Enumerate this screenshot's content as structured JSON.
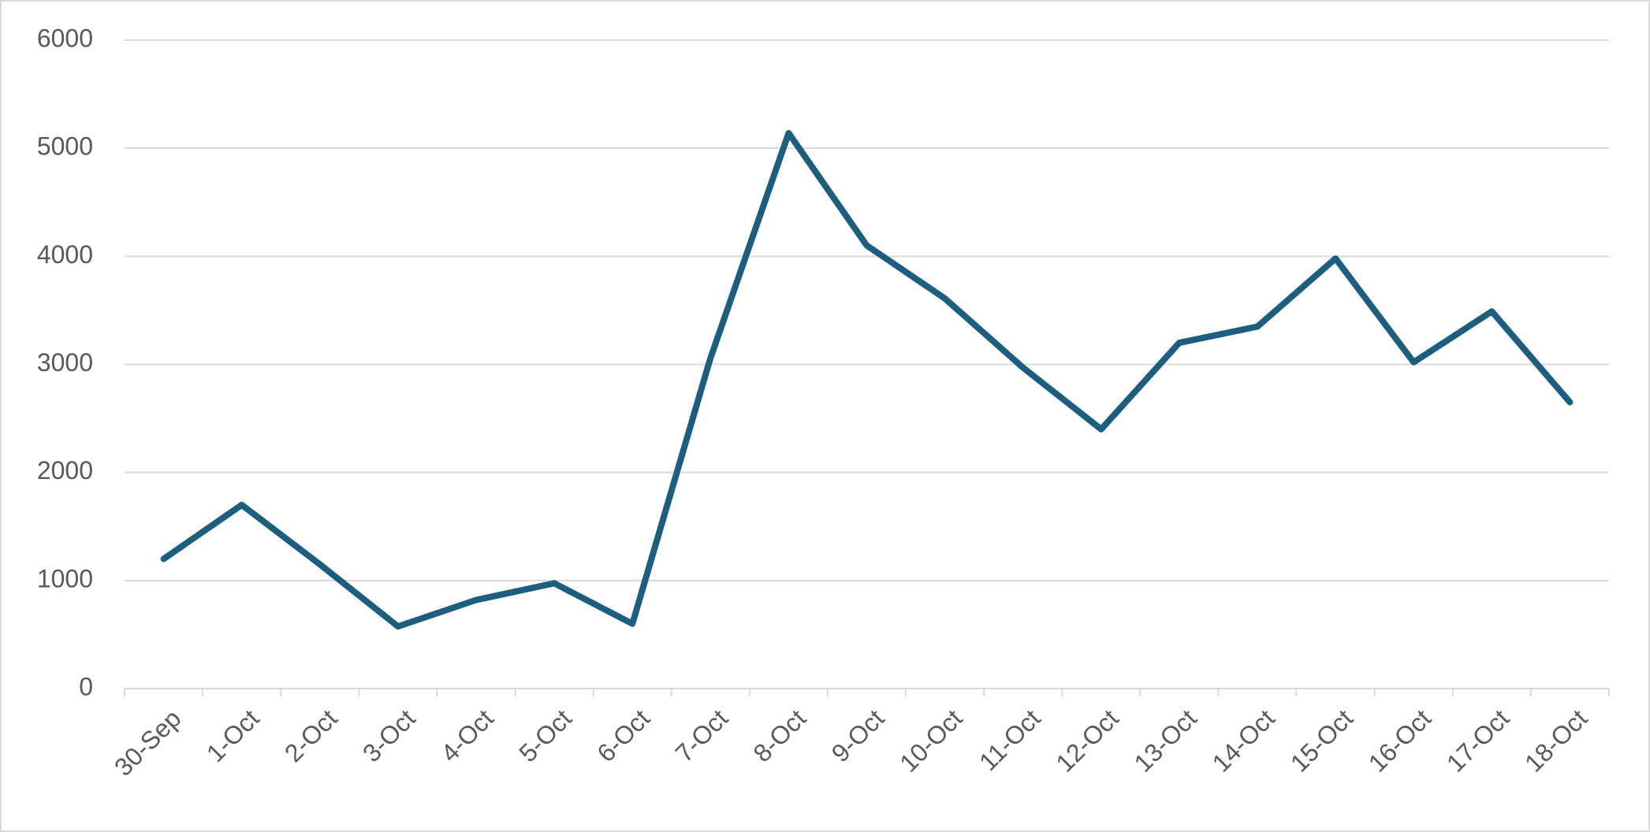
{
  "chart_data": {
    "type": "line",
    "categories": [
      "30-Sep",
      "1-Oct",
      "2-Oct",
      "3-Oct",
      "4-Oct",
      "5-Oct",
      "6-Oct",
      "7-Oct",
      "8-Oct",
      "9-Oct",
      "10-Oct",
      "11-Oct",
      "12-Oct",
      "13-Oct",
      "14-Oct",
      "15-Oct",
      "16-Oct",
      "17-Oct",
      "18-Oct"
    ],
    "values": [
      1200,
      1700,
      1150,
      575,
      820,
      975,
      600,
      3060,
      5140,
      4100,
      3610,
      2970,
      2400,
      3200,
      3350,
      3980,
      3020,
      3490,
      2650
    ],
    "color": "#1b5e80",
    "ylim": [
      0,
      6000
    ],
    "yticks": [
      0,
      1000,
      2000,
      3000,
      4000,
      5000,
      6000
    ],
    "grid": true
  }
}
